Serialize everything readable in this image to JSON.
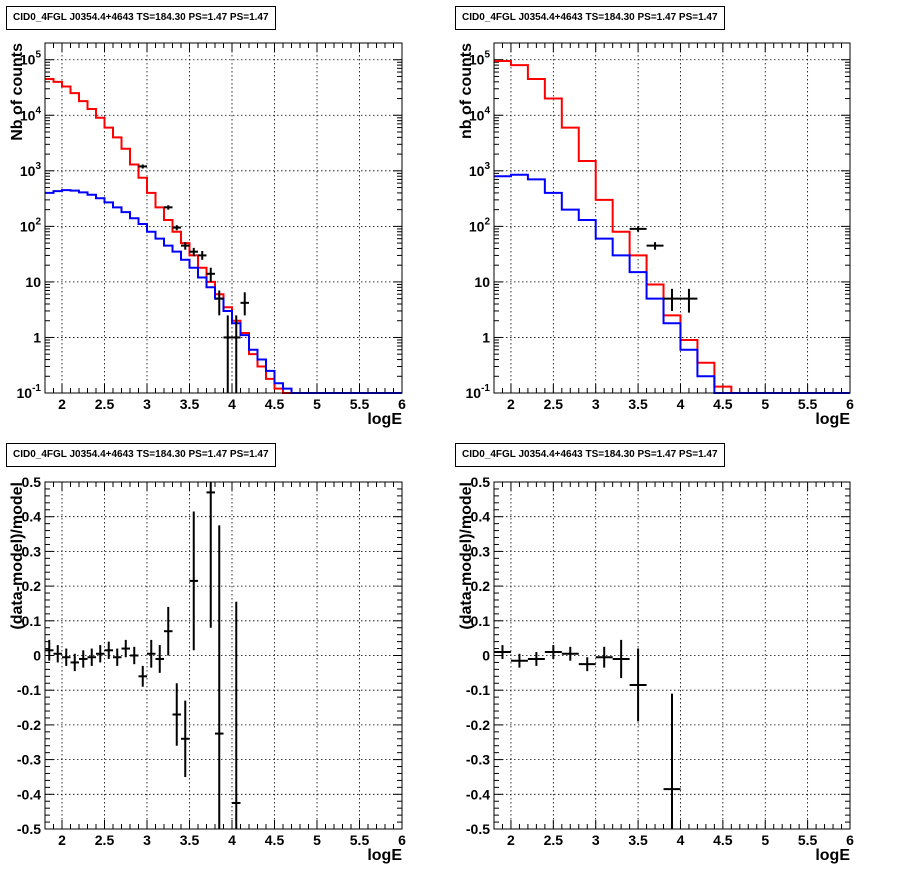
{
  "chart_data": [
    {
      "type": "line",
      "panel": "top-left",
      "title": "CID0_4FGL J0354.4+4643 TS=184.30 PS=1.47 PS=1.47",
      "xlabel": "logE",
      "ylabel": "Nb of counts",
      "xlim": [
        1.8,
        6.0
      ],
      "ylim": [
        0.1,
        200000
      ],
      "yscale": "log",
      "grid": true,
      "xticks": [
        "2",
        "2.5",
        "3",
        "3.5",
        "4",
        "4.5",
        "5",
        "5.5",
        "6"
      ],
      "yticks": [
        "10-1",
        "1",
        "10",
        "102",
        "103",
        "104",
        "105"
      ],
      "bin_edges": [
        1.8,
        1.9,
        2.0,
        2.1,
        2.2,
        2.3,
        2.4,
        2.5,
        2.6,
        2.7,
        2.8,
        2.9,
        3.0,
        3.1,
        3.2,
        3.3,
        3.4,
        3.5,
        3.6,
        3.7,
        3.8,
        3.9,
        4.0,
        4.1,
        4.2,
        4.3,
        4.4,
        4.5,
        4.6,
        4.7,
        4.8,
        4.9,
        5.0,
        5.1,
        5.2,
        5.3,
        5.4,
        5.5,
        5.6,
        5.7,
        5.8,
        5.9,
        6.0
      ],
      "series": [
        {
          "color": "#ff0000",
          "values": [
            45000,
            40000,
            33000,
            25000,
            18000,
            13000,
            9000,
            6000,
            4000,
            2500,
            1300,
            750,
            400,
            220,
            130,
            80,
            50,
            30,
            18,
            10,
            6,
            3.5,
            2,
            1.2,
            0.5,
            0.3,
            0.18,
            0.12,
            0.1,
            0.1,
            0.1,
            0.1,
            0.1,
            0.1,
            0.1,
            0.1,
            0.1,
            0.1,
            0.1,
            0.1,
            0.1,
            0.1
          ]
        },
        {
          "color": "#0000ff",
          "values": [
            400,
            430,
            450,
            440,
            410,
            370,
            320,
            270,
            220,
            180,
            140,
            110,
            80,
            60,
            45,
            35,
            25,
            18,
            12,
            8,
            5,
            3,
            1.8,
            1.1,
            0.6,
            0.4,
            0.25,
            0.15,
            0.12,
            0.1,
            0.1,
            0.1,
            0.1,
            0.1,
            0.1,
            0.1,
            0.1,
            0.1,
            0.1,
            0.1,
            0.1,
            0.1
          ]
        }
      ],
      "points": [
        {
          "x": 2.95,
          "y": 1200,
          "xerr": 0.05,
          "ylo": 1100,
          "yhi": 1300
        },
        {
          "x": 3.25,
          "y": 220,
          "xerr": 0.05,
          "ylo": 200,
          "yhi": 240
        },
        {
          "x": 3.35,
          "y": 95,
          "xerr": 0.05,
          "ylo": 85,
          "yhi": 105
        },
        {
          "x": 3.45,
          "y": 45,
          "xerr": 0.05,
          "ylo": 38,
          "yhi": 52
        },
        {
          "x": 3.55,
          "y": 35,
          "xerr": 0.05,
          "ylo": 29,
          "yhi": 41
        },
        {
          "x": 3.65,
          "y": 30,
          "xerr": 0.05,
          "ylo": 25,
          "yhi": 36
        },
        {
          "x": 3.75,
          "y": 14,
          "xerr": 0.05,
          "ylo": 10,
          "yhi": 18
        },
        {
          "x": 3.85,
          "y": 5,
          "xerr": 0.05,
          "ylo": 2.5,
          "yhi": 7
        },
        {
          "x": 3.95,
          "y": 1,
          "xerr": 0.05,
          "ylo": 0.1,
          "yhi": 2.5
        },
        {
          "x": 4.05,
          "y": 1,
          "xerr": 0.05,
          "ylo": 0.1,
          "yhi": 2.5
        },
        {
          "x": 4.15,
          "y": 4.2,
          "xerr": 0.05,
          "ylo": 2.5,
          "yhi": 6.5
        }
      ]
    },
    {
      "type": "line",
      "panel": "top-right",
      "title": "CID0_4FGL J0354.4+4643 TS=184.30 PS=1.47 PS=1.47",
      "xlabel": "logE",
      "ylabel": "nb of counts",
      "xlim": [
        1.8,
        6.0
      ],
      "ylim": [
        0.1,
        200000
      ],
      "yscale": "log",
      "grid": true,
      "xticks": [
        "2",
        "2.5",
        "3",
        "3.5",
        "4",
        "4.5",
        "5",
        "5.5",
        "6"
      ],
      "yticks": [
        "10-1",
        "1",
        "10",
        "102",
        "103",
        "104",
        "105"
      ],
      "bin_edges": [
        1.8,
        2.0,
        2.2,
        2.4,
        2.6,
        2.8,
        3.0,
        3.2,
        3.4,
        3.6,
        3.8,
        4.0,
        4.2,
        4.4,
        4.6,
        4.8,
        5.0,
        5.2,
        5.4,
        5.6,
        5.8,
        6.0
      ],
      "series": [
        {
          "color": "#ff0000",
          "values": [
            95000,
            80000,
            45000,
            20000,
            6000,
            1500,
            300,
            80,
            30,
            9,
            2.5,
            0.9,
            0.35,
            0.13,
            0.1,
            0.1,
            0.1,
            0.1,
            0.1,
            0.1,
            0.1
          ]
        },
        {
          "color": "#0000ff",
          "values": [
            800,
            850,
            700,
            400,
            200,
            130,
            60,
            30,
            15,
            5,
            1.8,
            0.6,
            0.2,
            0.1,
            0.1,
            0.1,
            0.1,
            0.1,
            0.1,
            0.1,
            0.1
          ]
        }
      ],
      "points": [
        {
          "x": 3.5,
          "y": 90,
          "xerr": 0.1,
          "ylo": 80,
          "yhi": 100
        },
        {
          "x": 3.7,
          "y": 45,
          "xerr": 0.1,
          "ylo": 38,
          "yhi": 52
        },
        {
          "x": 3.9,
          "y": 5,
          "xerr": 0.1,
          "ylo": 3,
          "yhi": 7.5
        },
        {
          "x": 4.1,
          "y": 5,
          "xerr": 0.1,
          "ylo": 2.8,
          "yhi": 7.5
        }
      ]
    },
    {
      "type": "scatter",
      "panel": "bottom-left",
      "title": "CID0_4FGL J0354.4+4643 TS=184.30 PS=1.47 PS=1.47",
      "xlabel": "logE",
      "ylabel": "(data-model)/model",
      "xlim": [
        1.8,
        6.0
      ],
      "ylim": [
        -0.5,
        0.5
      ],
      "grid": true,
      "xticks": [
        "2",
        "2.5",
        "3",
        "3.5",
        "4",
        "4.5",
        "5",
        "5.5",
        "6"
      ],
      "yticks": [
        "-0.5",
        "-0.4",
        "-0.3",
        "-0.2",
        "-0.1",
        "0",
        "0.1",
        "0.2",
        "0.3",
        "0.4",
        "0.5"
      ],
      "points": [
        {
          "x": 1.85,
          "y": 0.015,
          "xerr": 0.05,
          "err": 0.03
        },
        {
          "x": 1.95,
          "y": 0.005,
          "xerr": 0.05,
          "err": 0.025
        },
        {
          "x": 2.05,
          "y": -0.005,
          "xerr": 0.05,
          "err": 0.025
        },
        {
          "x": 2.15,
          "y": -0.02,
          "xerr": 0.05,
          "err": 0.025
        },
        {
          "x": 2.25,
          "y": -0.01,
          "xerr": 0.05,
          "err": 0.025
        },
        {
          "x": 2.35,
          "y": -0.005,
          "xerr": 0.05,
          "err": 0.025
        },
        {
          "x": 2.45,
          "y": 0.005,
          "xerr": 0.05,
          "err": 0.025
        },
        {
          "x": 2.55,
          "y": 0.015,
          "xerr": 0.05,
          "err": 0.025
        },
        {
          "x": 2.65,
          "y": -0.005,
          "xerr": 0.05,
          "err": 0.025
        },
        {
          "x": 2.75,
          "y": 0.02,
          "xerr": 0.05,
          "err": 0.025
        },
        {
          "x": 2.85,
          "y": 0.0,
          "xerr": 0.05,
          "err": 0.025
        },
        {
          "x": 2.95,
          "y": -0.06,
          "xerr": 0.05,
          "err": 0.03
        },
        {
          "x": 3.05,
          "y": 0.005,
          "xerr": 0.05,
          "err": 0.04
        },
        {
          "x": 3.15,
          "y": -0.01,
          "xerr": 0.05,
          "err": 0.04
        },
        {
          "x": 3.25,
          "y": 0.07,
          "xerr": 0.05,
          "err": 0.07
        },
        {
          "x": 3.35,
          "y": -0.17,
          "xerr": 0.05,
          "err": 0.09
        },
        {
          "x": 3.45,
          "y": -0.24,
          "xerr": 0.05,
          "err": 0.11
        },
        {
          "x": 3.55,
          "y": 0.215,
          "xerr": 0.05,
          "err": 0.2
        },
        {
          "x": 3.75,
          "y": 0.47,
          "xerr": 0.05,
          "err": 0.39
        },
        {
          "x": 3.85,
          "y": -0.225,
          "xerr": 0.05,
          "err": 0.6
        },
        {
          "x": 4.05,
          "y": -0.425,
          "xerr": 0.05,
          "err": 0.58
        }
      ]
    },
    {
      "type": "scatter",
      "panel": "bottom-right",
      "title": "CID0_4FGL J0354.4+4643 TS=184.30 PS=1.47 PS=1.47",
      "xlabel": "logE",
      "ylabel": "(data-model)/model",
      "xlim": [
        1.8,
        6.0
      ],
      "ylim": [
        -0.5,
        0.5
      ],
      "grid": true,
      "xticks": [
        "2",
        "2.5",
        "3",
        "3.5",
        "4",
        "4.5",
        "5",
        "5.5",
        "6"
      ],
      "yticks": [
        "-0.5",
        "-0.4",
        "-0.3",
        "-0.2",
        "-0.1",
        "0",
        "0.1",
        "0.2",
        "0.3",
        "0.4",
        "0.5"
      ],
      "points": [
        {
          "x": 1.9,
          "y": 0.01,
          "xerr": 0.1,
          "err": 0.02
        },
        {
          "x": 2.1,
          "y": -0.015,
          "xerr": 0.1,
          "err": 0.02
        },
        {
          "x": 2.3,
          "y": -0.01,
          "xerr": 0.1,
          "err": 0.02
        },
        {
          "x": 2.5,
          "y": 0.01,
          "xerr": 0.1,
          "err": 0.02
        },
        {
          "x": 2.7,
          "y": 0.005,
          "xerr": 0.1,
          "err": 0.02
        },
        {
          "x": 2.9,
          "y": -0.025,
          "xerr": 0.1,
          "err": 0.02
        },
        {
          "x": 3.1,
          "y": -0.005,
          "xerr": 0.1,
          "err": 0.03
        },
        {
          "x": 3.3,
          "y": -0.01,
          "xerr": 0.1,
          "err": 0.055
        },
        {
          "x": 3.5,
          "y": -0.085,
          "xerr": 0.1,
          "err": 0.105
        },
        {
          "x": 3.9,
          "y": -0.385,
          "xerr": 0.1,
          "err": 0.275
        }
      ]
    }
  ]
}
